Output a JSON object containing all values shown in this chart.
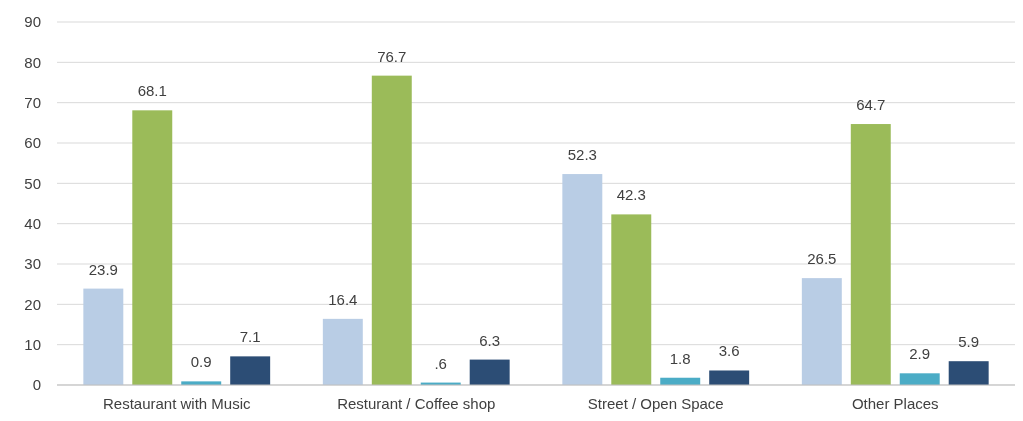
{
  "chart_data": {
    "type": "bar",
    "categories": [
      "Restaurant with Music",
      "Resturant / Coffee shop",
      "Street / Open Space",
      "Other Places"
    ],
    "series": [
      {
        "color": "#b9cde5",
        "values": [
          23.9,
          16.4,
          52.3,
          26.5
        ],
        "value_labels": [
          "23.9",
          "16.4",
          "52.3",
          "26.5"
        ]
      },
      {
        "color": "#9bbb59",
        "values": [
          68.1,
          76.7,
          42.3,
          64.7
        ],
        "value_labels": [
          "68.1",
          "76.7",
          "42.3",
          "64.7"
        ]
      },
      {
        "color": "#4bacc6",
        "values": [
          0.9,
          0.6,
          1.8,
          2.9
        ],
        "value_labels": [
          "0.9",
          ".6",
          "1.8",
          "2.9"
        ]
      },
      {
        "color": "#2c4d75",
        "values": [
          7.1,
          6.3,
          3.6,
          5.9
        ],
        "value_labels": [
          "7.1",
          "6.3",
          "3.6",
          "5.9"
        ]
      }
    ],
    "ylim": [
      0,
      90
    ],
    "yticks": [
      0,
      10,
      20,
      30,
      40,
      50,
      60,
      70,
      80,
      90
    ],
    "grid": "y"
  }
}
